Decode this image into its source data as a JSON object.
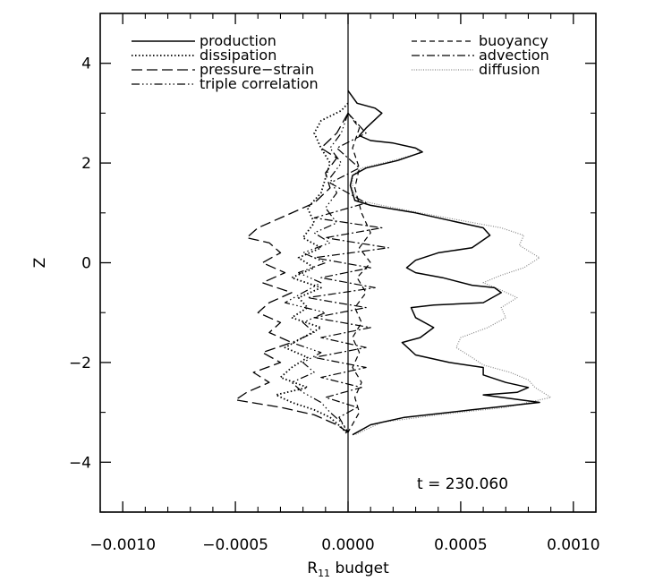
{
  "chart_data": {
    "type": "line",
    "orientation": "profiles-vs-z",
    "xlabel": "R",
    "xlabel_sub": "11",
    "xlabel_suffix": " budget",
    "ylabel": "Z",
    "xlim": [
      -0.0011,
      0.0011
    ],
    "ylim": [
      -5,
      5
    ],
    "x_ticks": [
      -0.001,
      -0.0005,
      0.0,
      0.0005,
      0.001
    ],
    "x_tick_labels": [
      "−0.0010",
      "−0.0005",
      "0.0000",
      "0.0005",
      "0.0010"
    ],
    "y_ticks": [
      -4,
      -2,
      0,
      2,
      4
    ],
    "y_tick_labels": [
      "−4",
      "−2",
      "0",
      "2",
      "4"
    ],
    "grid": false,
    "annotation": "t = 230.060",
    "legend": [
      {
        "name": "production",
        "style": "solid",
        "column": "left"
      },
      {
        "name": "dissipation",
        "style": "dotted",
        "column": "left"
      },
      {
        "name": "pressure−strain",
        "style": "longdash",
        "column": "left"
      },
      {
        "name": "triple correlation",
        "style": "dashdotdotdot",
        "column": "left"
      },
      {
        "name": "buoyancy",
        "style": "dashed",
        "column": "right"
      },
      {
        "name": "advection",
        "style": "dashdot",
        "column": "right"
      },
      {
        "name": "diffusion",
        "style": "finedotted-gray",
        "column": "right"
      }
    ],
    "series": [
      {
        "name": "production",
        "style": "solid",
        "points": [
          [
            0,
            3.45
          ],
          [
            4e-05,
            3.2
          ],
          [
            0.00012,
            3.1
          ],
          [
            0.00015,
            3.0
          ],
          [
            8e-05,
            2.7
          ],
          [
            5e-05,
            2.55
          ],
          [
            0.0001,
            2.45
          ],
          [
            0.0002,
            2.4
          ],
          [
            0.0003,
            2.3
          ],
          [
            0.00033,
            2.22
          ],
          [
            0.00022,
            2.05
          ],
          [
            8e-05,
            1.9
          ],
          [
            2e-05,
            1.75
          ],
          [
            1e-05,
            1.55
          ],
          [
            3e-05,
            1.25
          ],
          [
            0.0001,
            1.15
          ],
          [
            0.0003,
            1.0
          ],
          [
            0.00045,
            0.85
          ],
          [
            0.0006,
            0.7
          ],
          [
            0.00063,
            0.55
          ],
          [
            0.00055,
            0.3
          ],
          [
            0.0004,
            0.2
          ],
          [
            0.0003,
            0.05
          ],
          [
            0.00026,
            -0.1
          ],
          [
            0.0003,
            -0.2
          ],
          [
            0.00042,
            -0.3
          ],
          [
            0.00055,
            -0.45
          ],
          [
            0.00065,
            -0.5
          ],
          [
            0.00068,
            -0.6
          ],
          [
            0.0006,
            -0.8
          ],
          [
            0.00038,
            -0.85
          ],
          [
            0.00028,
            -0.9
          ],
          [
            0.0003,
            -1.1
          ],
          [
            0.00038,
            -1.3
          ],
          [
            0.00032,
            -1.5
          ],
          [
            0.00024,
            -1.6
          ],
          [
            0.0003,
            -1.85
          ],
          [
            0.00045,
            -2.0
          ],
          [
            0.0006,
            -2.1
          ],
          [
            0.0006,
            -2.25
          ],
          [
            0.0007,
            -2.4
          ],
          [
            0.0008,
            -2.5
          ],
          [
            0.00075,
            -2.6
          ],
          [
            0.0006,
            -2.65
          ],
          [
            0.00085,
            -2.8
          ],
          [
            0.00055,
            -2.95
          ],
          [
            0.00025,
            -3.1
          ],
          [
            0.0001,
            -3.25
          ],
          [
            2e-05,
            -3.45
          ]
        ]
      },
      {
        "name": "diffusion",
        "style": "finedotted-gray",
        "points": [
          [
            0,
            3.45
          ],
          [
            4e-05,
            3.2
          ],
          [
            0.00012,
            3.1
          ],
          [
            0.00015,
            3.0
          ],
          [
            8e-05,
            2.7
          ],
          [
            5e-05,
            2.55
          ],
          [
            0.0001,
            2.45
          ],
          [
            0.0002,
            2.4
          ],
          [
            0.0003,
            2.3
          ],
          [
            0.00032,
            2.2
          ],
          [
            0.0002,
            2.05
          ],
          [
            6e-05,
            1.9
          ],
          [
            2e-05,
            1.75
          ],
          [
            2e-05,
            1.45
          ],
          [
            5e-05,
            1.25
          ],
          [
            0.00015,
            1.15
          ],
          [
            0.00032,
            1.0
          ],
          [
            0.0005,
            0.85
          ],
          [
            0.00068,
            0.7
          ],
          [
            0.00078,
            0.55
          ],
          [
            0.00076,
            0.35
          ],
          [
            0.00085,
            0.1
          ],
          [
            0.00078,
            -0.1
          ],
          [
            0.00068,
            -0.25
          ],
          [
            0.0006,
            -0.4
          ],
          [
            0.00068,
            -0.55
          ],
          [
            0.00075,
            -0.7
          ],
          [
            0.00068,
            -0.9
          ],
          [
            0.0007,
            -1.1
          ],
          [
            0.00062,
            -1.3
          ],
          [
            0.0005,
            -1.5
          ],
          [
            0.00048,
            -1.7
          ],
          [
            0.00055,
            -1.9
          ],
          [
            0.0006,
            -2.05
          ],
          [
            0.00072,
            -2.2
          ],
          [
            0.0008,
            -2.35
          ],
          [
            0.00083,
            -2.5
          ],
          [
            0.0009,
            -2.7
          ],
          [
            0.0007,
            -2.9
          ],
          [
            0.0004,
            -3.05
          ],
          [
            0.00015,
            -3.2
          ],
          [
            3e-05,
            -3.45
          ]
        ]
      },
      {
        "name": "dissipation",
        "style": "dotted",
        "points": [
          [
            0,
            3.2
          ],
          [
            -3e-05,
            3.05
          ],
          [
            -0.00012,
            2.85
          ],
          [
            -0.00015,
            2.6
          ],
          [
            -0.00012,
            2.3
          ],
          [
            -8e-05,
            2.0
          ],
          [
            -0.0001,
            1.7
          ],
          [
            -0.00012,
            1.4
          ],
          [
            -0.00018,
            1.1
          ],
          [
            -0.00015,
            0.8
          ],
          [
            -0.0002,
            0.5
          ],
          [
            -0.00012,
            0.3
          ],
          [
            -0.00022,
            0.1
          ],
          [
            -0.00015,
            -0.1
          ],
          [
            -0.00025,
            -0.3
          ],
          [
            -0.00012,
            -0.5
          ],
          [
            -0.00022,
            -0.7
          ],
          [
            -0.00018,
            -0.9
          ],
          [
            -0.00025,
            -1.1
          ],
          [
            -0.00012,
            -1.3
          ],
          [
            -0.0002,
            -1.5
          ],
          [
            -0.00028,
            -1.7
          ],
          [
            -0.00018,
            -1.9
          ],
          [
            -0.00025,
            -2.1
          ],
          [
            -0.0003,
            -2.3
          ],
          [
            -0.00018,
            -2.5
          ],
          [
            -0.00032,
            -2.65
          ],
          [
            -0.00025,
            -2.8
          ],
          [
            -0.00015,
            -2.95
          ],
          [
            -8e-05,
            -3.1
          ],
          [
            -3e-05,
            -3.3
          ],
          [
            0,
            -3.45
          ]
        ]
      },
      {
        "name": "pressure−strain",
        "style": "longdash",
        "points": [
          [
            0,
            3.0
          ],
          [
            -5e-05,
            2.6
          ],
          [
            -0.00012,
            2.3
          ],
          [
            -5e-05,
            2.1
          ],
          [
            -0.0001,
            1.8
          ],
          [
            -8e-05,
            1.5
          ],
          [
            -0.00015,
            1.2
          ],
          [
            -0.0003,
            0.9
          ],
          [
            -0.0004,
            0.7
          ],
          [
            -0.00045,
            0.5
          ],
          [
            -0.00035,
            0.4
          ],
          [
            -0.0003,
            0.2
          ],
          [
            -0.00038,
            0.0
          ],
          [
            -0.00028,
            -0.2
          ],
          [
            -0.00038,
            -0.4
          ],
          [
            -0.00025,
            -0.6
          ],
          [
            -0.00035,
            -0.8
          ],
          [
            -0.0004,
            -1.0
          ],
          [
            -0.0003,
            -1.2
          ],
          [
            -0.00035,
            -1.4
          ],
          [
            -0.00025,
            -1.6
          ],
          [
            -0.00038,
            -1.8
          ],
          [
            -0.0003,
            -2.0
          ],
          [
            -0.00042,
            -2.2
          ],
          [
            -0.00035,
            -2.4
          ],
          [
            -0.00045,
            -2.6
          ],
          [
            -0.0005,
            -2.75
          ],
          [
            -0.0003,
            -2.9
          ],
          [
            -0.00015,
            -3.05
          ],
          [
            -5e-05,
            -3.25
          ],
          [
            0,
            -3.4
          ]
        ]
      },
      {
        "name": "buoyancy",
        "style": "dashed",
        "points": [
          [
            0,
            3.0
          ],
          [
            5e-05,
            2.7
          ],
          [
            2e-05,
            2.3
          ],
          [
            5e-05,
            1.9
          ],
          [
            3e-05,
            1.5
          ],
          [
            6e-05,
            1.0
          ],
          [
            0.0001,
            0.6
          ],
          [
            5e-05,
            0.3
          ],
          [
            0.0001,
            0.0
          ],
          [
            4e-05,
            -0.3
          ],
          [
            8e-05,
            -0.6
          ],
          [
            3e-05,
            -0.9
          ],
          [
            6e-05,
            -1.2
          ],
          [
            2e-05,
            -1.5
          ],
          [
            5e-05,
            -1.8
          ],
          [
            2e-05,
            -2.1
          ],
          [
            6e-05,
            -2.4
          ],
          [
            3e-05,
            -2.7
          ],
          [
            5e-05,
            -3.0
          ],
          [
            0,
            -3.4
          ]
        ]
      },
      {
        "name": "advection",
        "style": "dashdot",
        "points": [
          [
            0,
            3.0
          ],
          [
            8e-05,
            2.6
          ],
          [
            -5e-05,
            2.3
          ],
          [
            5e-05,
            1.9
          ],
          [
            -8e-05,
            1.6
          ],
          [
            8e-05,
            1.2
          ],
          [
            -0.00015,
            0.9
          ],
          [
            0.00015,
            0.7
          ],
          [
            -0.0001,
            0.5
          ],
          [
            0.00018,
            0.3
          ],
          [
            -0.00015,
            0.1
          ],
          [
            0.0001,
            -0.1
          ],
          [
            -0.00012,
            -0.3
          ],
          [
            0.00012,
            -0.5
          ],
          [
            -0.00018,
            -0.7
          ],
          [
            8e-05,
            -0.9
          ],
          [
            -0.00015,
            -1.1
          ],
          [
            0.0001,
            -1.3
          ],
          [
            -0.00012,
            -1.5
          ],
          [
            8e-05,
            -1.7
          ],
          [
            -0.00015,
            -1.9
          ],
          [
            8e-05,
            -2.1
          ],
          [
            -0.00012,
            -2.3
          ],
          [
            6e-05,
            -2.5
          ],
          [
            -0.0001,
            -2.7
          ],
          [
            4e-05,
            -2.9
          ],
          [
            -4e-05,
            -3.1
          ],
          [
            0,
            -3.4
          ]
        ]
      },
      {
        "name": "triple correlation",
        "style": "dashdotdotdot",
        "points": [
          [
            0,
            3.0
          ],
          [
            -3e-05,
            2.6
          ],
          [
            -8e-05,
            2.3
          ],
          [
            -3e-05,
            2.0
          ],
          [
            -8e-05,
            1.7
          ],
          [
            -5e-05,
            1.4
          ],
          [
            -0.0001,
            1.1
          ],
          [
            -5e-05,
            0.8
          ],
          [
            -0.00015,
            0.6
          ],
          [
            -8e-05,
            0.4
          ],
          [
            -0.0002,
            0.2
          ],
          [
            -0.0001,
            0.0
          ],
          [
            -0.00022,
            -0.2
          ],
          [
            -0.00012,
            -0.4
          ],
          [
            -0.0002,
            -0.6
          ],
          [
            -0.00028,
            -0.8
          ],
          [
            -0.0001,
            -1.0
          ],
          [
            -0.0002,
            -1.2
          ],
          [
            -0.00015,
            -1.4
          ],
          [
            -0.00025,
            -1.6
          ],
          [
            -0.00012,
            -1.8
          ],
          [
            -0.0002,
            -2.0
          ],
          [
            -0.00015,
            -2.2
          ],
          [
            -0.00025,
            -2.4
          ],
          [
            -0.0002,
            -2.6
          ],
          [
            -0.00012,
            -2.8
          ],
          [
            -8e-05,
            -3.0
          ],
          [
            -3e-05,
            -3.2
          ],
          [
            0,
            -3.4
          ]
        ]
      }
    ]
  }
}
